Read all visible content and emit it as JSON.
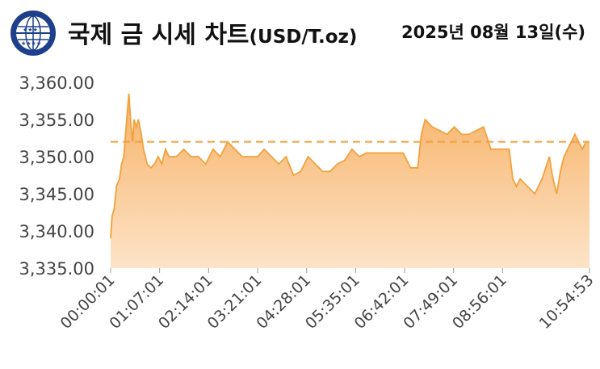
{
  "header": {
    "title": "국제 금 시세 차트",
    "unit": "(USD/T.oz)",
    "date": "2025년 08월 13일(수)",
    "logo_icon": "samsung-globe-logo"
  },
  "colors": {
    "line": "#f2a13c",
    "fill_top": "#f7b266",
    "fill_bottom": "#fde3c8",
    "reference_line": "#f2a13c"
  },
  "chart_data": {
    "type": "area",
    "title": "국제 금 시세 차트",
    "ylim": [
      3335,
      3360
    ],
    "yticks": [
      "3,335.00",
      "3,340.00",
      "3,345.00",
      "3,350.00",
      "3,355.00",
      "3,360.00"
    ],
    "ytick_values": [
      3335,
      3340,
      3345,
      3350,
      3355,
      3360
    ],
    "xticks": [
      "00:00:01",
      "01:07:01",
      "02:14:01",
      "03:21:01",
      "04:28:01",
      "05:35:01",
      "06:42:01",
      "07:49:01",
      "08:56:01",
      "10:54:53"
    ],
    "xlim": [
      "00:00:01",
      "10:54:53"
    ],
    "reference_value": 3352,
    "grid": false,
    "series": [
      {
        "x": [
          "00:00:01",
          "00:02:00",
          "00:05:00",
          "00:08:00",
          "00:12:00",
          "00:15:00",
          "00:18:00",
          "00:22:00",
          "00:25:00",
          "00:28:00",
          "00:30:00",
          "00:32:00",
          "00:35:00",
          "00:38:00",
          "00:42:00",
          "00:45:00",
          "00:50:00",
          "00:55:00",
          "01:00:00",
          "01:05:00",
          "01:10:00",
          "01:15:00",
          "01:20:00",
          "01:30:00",
          "01:40:00",
          "01:50:00",
          "02:00:00",
          "02:10:00",
          "02:20:00",
          "02:30:00",
          "02:40:00",
          "02:50:00",
          "03:00:00",
          "03:10:00",
          "03:21:00",
          "03:30:00",
          "03:40:00",
          "03:50:00",
          "04:00:00",
          "04:10:00",
          "04:20:00",
          "04:30:00",
          "04:40:00",
          "04:50:00",
          "05:00:00",
          "05:10:00",
          "05:20:00",
          "05:30:00",
          "05:40:00",
          "05:50:00",
          "06:00:00",
          "06:10:00",
          "06:20:00",
          "06:30:00",
          "06:40:00",
          "06:50:00",
          "06:55:00",
          "07:00:00",
          "07:05:00",
          "07:10:00",
          "07:20:00",
          "07:30:00",
          "07:40:00",
          "07:50:00",
          "08:00:00",
          "08:10:00",
          "08:20:00",
          "08:30:00",
          "08:40:00",
          "08:50:00",
          "08:56:00",
          "09:05:00",
          "09:10:00",
          "09:15:00",
          "09:20:00",
          "09:30:00",
          "09:40:00",
          "09:50:00",
          "10:00:00",
          "10:05:00",
          "10:10:00",
          "10:15:00",
          "10:20:00",
          "10:25:00",
          "10:30:00",
          "10:35:00",
          "10:40:00",
          "10:45:00",
          "10:50:00",
          "10:54:53"
        ],
        "y": [
          3339,
          3342,
          3343,
          3346,
          3347,
          3349,
          3350,
          3355,
          3358.5,
          3354,
          3352,
          3355,
          3354,
          3355,
          3353,
          3351,
          3349,
          3348.5,
          3349,
          3350,
          3349,
          3351,
          3350,
          3350,
          3351,
          3350,
          3350,
          3349,
          3351,
          3350,
          3352,
          3351,
          3350,
          3350,
          3350,
          3351,
          3350,
          3349,
          3350,
          3347.5,
          3348,
          3350,
          3349,
          3348,
          3348,
          3349,
          3349.5,
          3351,
          3350,
          3350.5,
          3350.5,
          3350.5,
          3350.5,
          3350.5,
          3350.5,
          3348.5,
          3348.5,
          3348.5,
          3353,
          3355,
          3354,
          3353.5,
          3353,
          3354,
          3353,
          3353,
          3353.5,
          3354,
          3351,
          3351,
          3351,
          3351,
          3347,
          3346,
          3347,
          3346,
          3345,
          3347,
          3350,
          3347,
          3345,
          3348,
          3350,
          3351,
          3352,
          3353,
          3352,
          3351,
          3352,
          3352
        ]
      }
    ]
  }
}
